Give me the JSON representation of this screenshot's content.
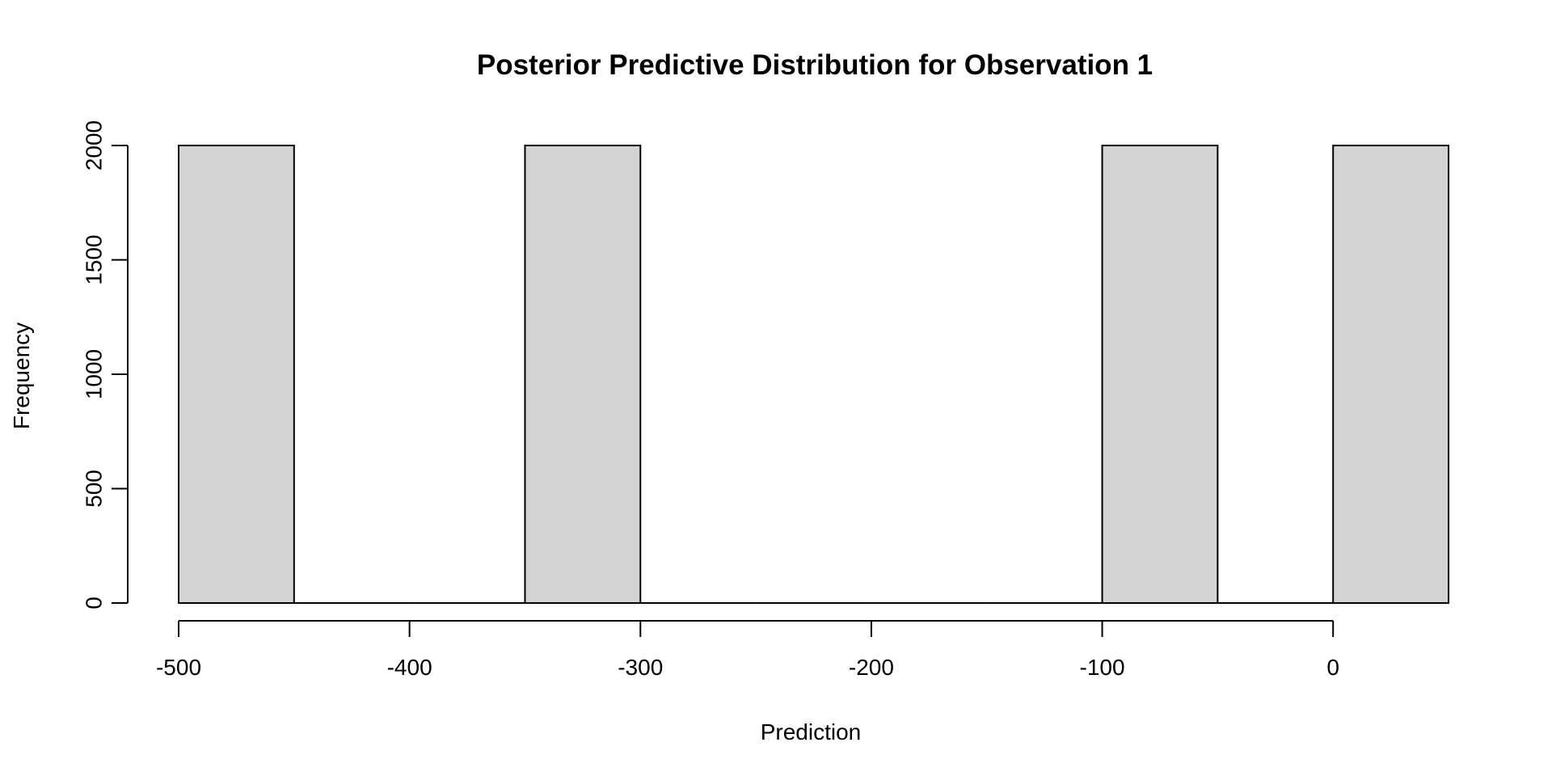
{
  "chart_data": {
    "type": "bar",
    "title": "Posterior Predictive Distribution for Observation 1",
    "xlabel": "Prediction",
    "ylabel": "Frequency",
    "bin_width": 50,
    "bins": [
      {
        "from": -500,
        "to": -450,
        "count": 2000
      },
      {
        "from": -450,
        "to": -400,
        "count": 0
      },
      {
        "from": -400,
        "to": -350,
        "count": 0
      },
      {
        "from": -350,
        "to": -300,
        "count": 2000
      },
      {
        "from": -300,
        "to": -250,
        "count": 0
      },
      {
        "from": -250,
        "to": -200,
        "count": 0
      },
      {
        "from": -200,
        "to": -150,
        "count": 0
      },
      {
        "from": -150,
        "to": -100,
        "count": 0
      },
      {
        "from": -100,
        "to": -50,
        "count": 2000
      },
      {
        "from": -50,
        "to": 0,
        "count": 0
      },
      {
        "from": 0,
        "to": 50,
        "count": 2000
      }
    ],
    "xlim": [
      -500,
      50
    ],
    "ylim": [
      0,
      2000
    ],
    "x_ticks": [
      -500,
      -400,
      -300,
      -200,
      -100,
      0
    ],
    "x_tick_labels": [
      "-500",
      "-400",
      "-300",
      "-200",
      "-100",
      "0"
    ],
    "y_ticks": [
      0,
      500,
      1000,
      1500,
      2000
    ],
    "y_tick_labels": [
      "0",
      "500",
      "1000",
      "1500",
      "2000"
    ],
    "grid": false,
    "bar_fill": "#d3d3d3",
    "bar_stroke": "#000000"
  }
}
